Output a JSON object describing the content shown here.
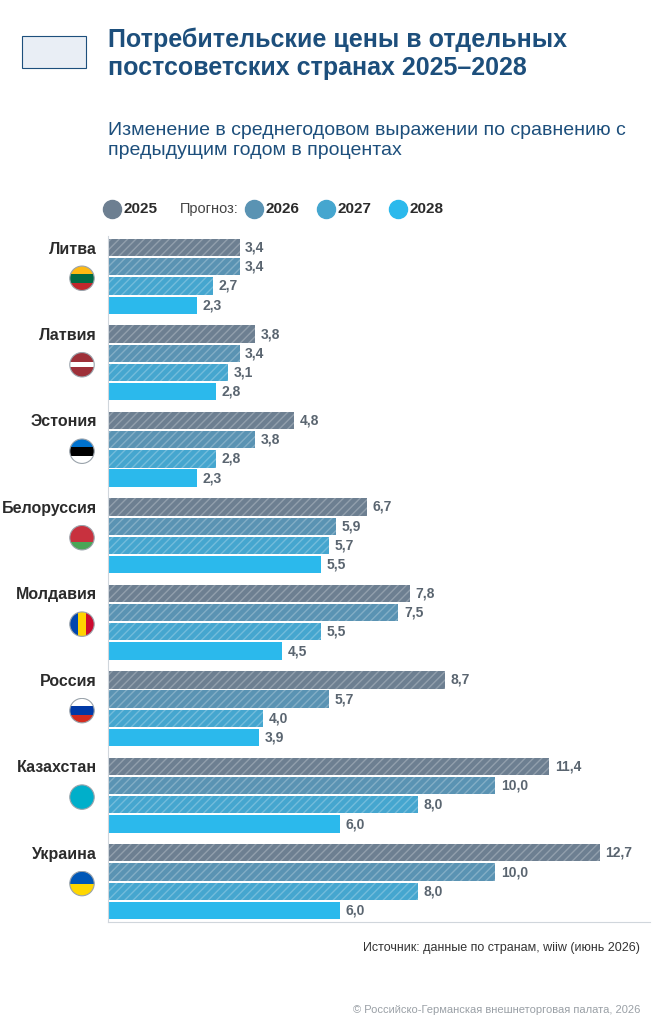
{
  "chart_data": {
    "type": "bar",
    "orientation": "horizontal",
    "title": "Потребительские цены в отдельных постсоветских странах 2025–2028",
    "subtitle": "Изменение в среднегодовом выражении по сравнению с предыдущим годом в процентах",
    "legend_note": "Прогноз:",
    "source": "Источник: данные по странам, wiiw (июнь 2026)",
    "copyright": "© Российско-Германская внешнеторговая палата, 2026",
    "categories": [
      "Литва",
      "Латвия",
      "Эстония",
      "Белоруссия",
      "Молдавия",
      "Россия",
      "Казахстан",
      "Украина"
    ],
    "series": [
      {
        "name": "2025",
        "color": "#6d7f91",
        "values": [
          3.4,
          3.8,
          4.8,
          6.7,
          7.8,
          8.7,
          11.4,
          12.7
        ],
        "value_labels": [
          "3,4",
          "3,8",
          "4,8",
          "6,7",
          "7,8",
          "8,7",
          "11,4",
          "12,7"
        ]
      },
      {
        "name": "2026",
        "color": "#5a93b3",
        "values": [
          3.4,
          3.4,
          3.8,
          5.9,
          7.5,
          5.7,
          10.0,
          10.0
        ],
        "value_labels": [
          "3,4",
          "3,4",
          "3,8",
          "5,9",
          "7,5",
          "5,7",
          "10,0",
          "10,0"
        ]
      },
      {
        "name": "2027",
        "color": "#45a6cf",
        "values": [
          2.7,
          3.1,
          2.8,
          5.7,
          5.5,
          4.0,
          8.0,
          8.0
        ],
        "value_labels": [
          "2,7",
          "3,1",
          "2,8",
          "5,7",
          "5,5",
          "4,0",
          "8,0",
          "8,0"
        ]
      },
      {
        "name": "2028",
        "color": "#2bb9ec",
        "values": [
          2.3,
          2.8,
          2.3,
          5.5,
          4.5,
          3.9,
          6.0,
          6.0
        ],
        "value_labels": [
          "2,3",
          "2,8",
          "2,3",
          "5,5",
          "4,5",
          "3,9",
          "6,0",
          "6,0"
        ]
      }
    ],
    "xlim": [
      0,
      14
    ],
    "xticks": [],
    "data_labels": true,
    "tick_labels": "y",
    "grid": false
  }
}
